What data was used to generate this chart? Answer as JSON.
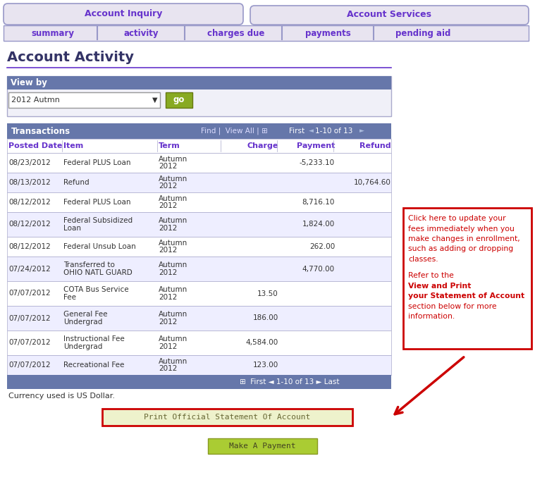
{
  "tab_nav": {
    "account_inquiry": "Account Inquiry",
    "account_services": "Account Services",
    "sub_tabs": [
      "summary",
      "activity",
      "charges due",
      "payments",
      "pending aid"
    ]
  },
  "page_title": "Account Activity",
  "view_by_label": "View by",
  "dropdown_value": "2012 Autmn",
  "go_button": "go",
  "col_headers": [
    "Posted Date",
    "Item",
    "Term",
    "Charge",
    "Payment",
    "Refund"
  ],
  "rows": [
    [
      "08/23/2012",
      "Federal PLUS Loan",
      "Autumn\n2012",
      "",
      "-5,233.10",
      ""
    ],
    [
      "08/13/2012",
      "Refund",
      "Autumn\n2012",
      "",
      "",
      "10,764.60"
    ],
    [
      "08/12/2012",
      "Federal PLUS Loan",
      "Autumn\n2012",
      "",
      "8,716.10",
      ""
    ],
    [
      "08/12/2012",
      "Federal Subsidized\nLoan",
      "Autumn\n2012",
      "",
      "1,824.00",
      ""
    ],
    [
      "08/12/2012",
      "Federal Unsub Loan",
      "Autumn\n2012",
      "",
      "262.00",
      ""
    ],
    [
      "07/24/2012",
      "Transferred to\nOHIO NATL GUARD",
      "Autumn\n2012",
      "",
      "4,770.00",
      ""
    ],
    [
      "07/07/2012",
      "COTA Bus Service\nFee",
      "Autumn\n2012",
      "13.50",
      "",
      ""
    ],
    [
      "07/07/2012",
      "General Fee\nUndergrad",
      "Autumn\n2012",
      "186.00",
      "",
      ""
    ],
    [
      "07/07/2012",
      "Instructional Fee\nUndergrad",
      "Autumn\n2012",
      "4,584.00",
      "",
      ""
    ],
    [
      "07/07/2012",
      "Recreational Fee",
      "Autumn\n2012",
      "123.00",
      "",
      ""
    ]
  ],
  "currency_note": "Currency used is US Dollar.",
  "print_button": "Print Official Statement Of Account",
  "make_payment_button": "Make A Payment",
  "colors": {
    "tab_bg": "#e8e4f0",
    "tab_border": "#9898c8",
    "tab_text": "#6633cc",
    "subtab_bg": "#e8e4f0",
    "subtab_border": "#9898c8",
    "header_bg": "#6677aa",
    "header_text": "#ffffff",
    "col_header_text": "#6633cc",
    "row_white": "#ffffff",
    "row_gray": "#eeeeff",
    "table_border": "#aaaacc",
    "view_by_bg": "#6677aa",
    "view_by_text": "#ffffff",
    "view_by_box_bg": "#f0f0f8",
    "view_by_box_border": "#aaaacc",
    "go_button_bg": "#88aa22",
    "title_text": "#333366",
    "body_text": "#333333",
    "callout_border": "#cc0000",
    "callout_text": "#cc0000",
    "print_btn_bg": "#eef2cc",
    "print_btn_border": "#cc0000",
    "print_btn_text": "#666633",
    "make_payment_bg": "#aacc33",
    "make_payment_border": "#889922",
    "make_payment_text": "#444422",
    "arrow_color": "#cc0000",
    "separator_line": "#6633cc",
    "page_bg": "#ffffff"
  }
}
